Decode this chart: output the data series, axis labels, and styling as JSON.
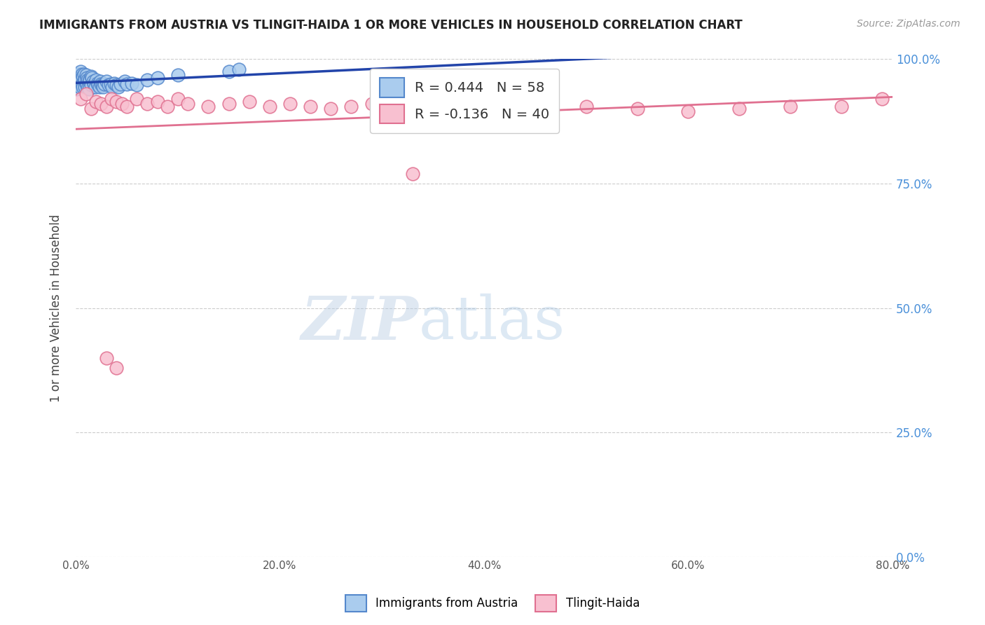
{
  "title": "IMMIGRANTS FROM AUSTRIA VS TLINGIT-HAIDA 1 OR MORE VEHICLES IN HOUSEHOLD CORRELATION CHART",
  "source": "Source: ZipAtlas.com",
  "xlabel_ticks": [
    "0.0%",
    "20.0%",
    "40.0%",
    "60.0%",
    "80.0%"
  ],
  "xlabel_vals": [
    0.0,
    0.2,
    0.4,
    0.6,
    0.8
  ],
  "ylabel": "1 or more Vehicles in Household",
  "ylabel_ticks": [
    "0.0%",
    "25.0%",
    "50.0%",
    "75.0%",
    "100.0%"
  ],
  "ylabel_vals": [
    0.0,
    0.25,
    0.5,
    0.75,
    1.0
  ],
  "blue_R": 0.444,
  "blue_N": 58,
  "pink_R": -0.136,
  "pink_N": 40,
  "blue_label": "Immigrants from Austria",
  "pink_label": "Tlingit-Haida",
  "blue_color": "#aaccee",
  "blue_edge_color": "#5588cc",
  "pink_color": "#f8c0d0",
  "pink_edge_color": "#e07090",
  "blue_line_color": "#2244aa",
  "pink_line_color": "#e07090",
  "background_color": "#ffffff",
  "blue_scatter_x": [
    0.001,
    0.002,
    0.002,
    0.003,
    0.003,
    0.004,
    0.004,
    0.005,
    0.005,
    0.006,
    0.006,
    0.007,
    0.007,
    0.008,
    0.008,
    0.009,
    0.009,
    0.01,
    0.01,
    0.011,
    0.011,
    0.012,
    0.012,
    0.013,
    0.013,
    0.014,
    0.015,
    0.015,
    0.016,
    0.017,
    0.018,
    0.019,
    0.02,
    0.021,
    0.022,
    0.023,
    0.024,
    0.025,
    0.026,
    0.027,
    0.028,
    0.03,
    0.032,
    0.034,
    0.036,
    0.038,
    0.04,
    0.042,
    0.044,
    0.048,
    0.05,
    0.055,
    0.06,
    0.07,
    0.08,
    0.1,
    0.15,
    0.16
  ],
  "blue_scatter_y": [
    0.94,
    0.96,
    0.95,
    0.97,
    0.955,
    0.965,
    0.945,
    0.975,
    0.96,
    0.97,
    0.95,
    0.965,
    0.945,
    0.97,
    0.955,
    0.96,
    0.945,
    0.968,
    0.952,
    0.963,
    0.948,
    0.958,
    0.942,
    0.955,
    0.94,
    0.96,
    0.965,
    0.948,
    0.962,
    0.955,
    0.95,
    0.945,
    0.958,
    0.952,
    0.948,
    0.945,
    0.955,
    0.95,
    0.948,
    0.945,
    0.95,
    0.955,
    0.948,
    0.95,
    0.945,
    0.952,
    0.948,
    0.945,
    0.95,
    0.955,
    0.95,
    0.952,
    0.948,
    0.958,
    0.962,
    0.968,
    0.975,
    0.98
  ],
  "pink_scatter_x": [
    0.005,
    0.01,
    0.015,
    0.02,
    0.025,
    0.03,
    0.035,
    0.04,
    0.045,
    0.05,
    0.06,
    0.07,
    0.08,
    0.09,
    0.1,
    0.11,
    0.13,
    0.15,
    0.17,
    0.19,
    0.21,
    0.23,
    0.25,
    0.27,
    0.29,
    0.32,
    0.35,
    0.38,
    0.42,
    0.46,
    0.5,
    0.55,
    0.6,
    0.65,
    0.7,
    0.75,
    0.79,
    0.03,
    0.04,
    0.33
  ],
  "pink_scatter_y": [
    0.92,
    0.93,
    0.9,
    0.915,
    0.91,
    0.905,
    0.92,
    0.915,
    0.91,
    0.905,
    0.92,
    0.91,
    0.915,
    0.905,
    0.92,
    0.91,
    0.905,
    0.91,
    0.915,
    0.905,
    0.91,
    0.905,
    0.9,
    0.905,
    0.91,
    0.895,
    0.905,
    0.9,
    0.895,
    0.9,
    0.905,
    0.9,
    0.895,
    0.9,
    0.905,
    0.905,
    0.92,
    0.4,
    0.38,
    0.77
  ]
}
